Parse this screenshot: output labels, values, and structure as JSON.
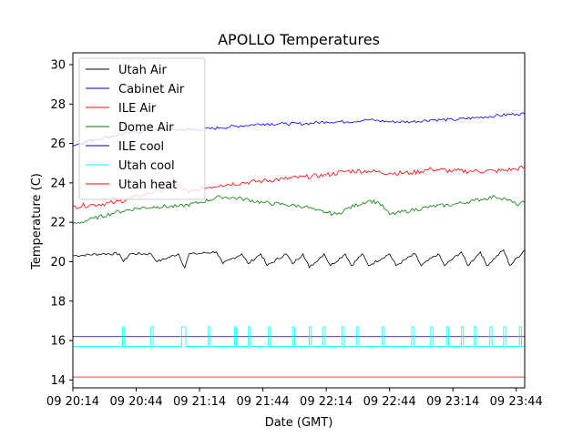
{
  "chart_data": {
    "type": "line",
    "title": "APOLLO Temperatures",
    "xlabel": "Date (GMT)",
    "ylabel": "Temperature (C)",
    "xlim_minutes": [
      0,
      214
    ],
    "ylim": [
      13.6,
      30.6
    ],
    "x_ticks": [
      {
        "label": "09 20:14",
        "minute": 0
      },
      {
        "label": "09 20:44",
        "minute": 30
      },
      {
        "label": "09 21:14",
        "minute": 60
      },
      {
        "label": "09 21:44",
        "minute": 90
      },
      {
        "label": "09 22:14",
        "minute": 120
      },
      {
        "label": "09 22:44",
        "minute": 150
      },
      {
        "label": "09 23:14",
        "minute": 180
      },
      {
        "label": "09 23:44",
        "minute": 210
      }
    ],
    "y_ticks": [
      14,
      16,
      18,
      20,
      22,
      24,
      26,
      28,
      30
    ],
    "legend_position": "upper-left",
    "series": [
      {
        "name": "Utah Air",
        "color": "#000000",
        "x": [
          0,
          14,
          22,
          24,
          27,
          37,
          40,
          50,
          53,
          55,
          58,
          68,
          71,
          80,
          83,
          89,
          92,
          101,
          104,
          109,
          112,
          119,
          122,
          129,
          132,
          137,
          140,
          150,
          153,
          162,
          165,
          173,
          176,
          184,
          187,
          193,
          196,
          204,
          207,
          214
        ],
        "values": [
          20.3,
          20.4,
          20.4,
          20.0,
          20.4,
          20.4,
          20.0,
          20.4,
          19.7,
          20.4,
          20.4,
          20.5,
          19.9,
          20.4,
          19.9,
          20.4,
          19.8,
          20.4,
          19.9,
          20.4,
          19.7,
          20.4,
          19.8,
          20.4,
          19.8,
          20.4,
          19.8,
          20.4,
          19.8,
          20.4,
          19.8,
          20.4,
          19.8,
          20.5,
          19.8,
          20.5,
          19.8,
          20.6,
          19.8,
          20.6
        ]
      },
      {
        "name": "Cabinet Air",
        "color": "#0000ff",
        "x": [
          0,
          10,
          20,
          30,
          40,
          50,
          60,
          70,
          80,
          90,
          100,
          110,
          120,
          130,
          140,
          150,
          160,
          170,
          180,
          190,
          200,
          210,
          214
        ],
        "values": [
          25.9,
          26.2,
          26.4,
          26.6,
          26.7,
          26.7,
          26.7,
          26.8,
          26.9,
          27.0,
          27.0,
          27.0,
          27.1,
          27.1,
          27.2,
          27.1,
          27.1,
          27.2,
          27.2,
          27.3,
          27.4,
          27.5,
          27.5
        ]
      },
      {
        "name": "ILE Air",
        "color": "#ff0000",
        "x": [
          0,
          10,
          20,
          30,
          40,
          50,
          55,
          60,
          70,
          80,
          90,
          100,
          110,
          120,
          130,
          140,
          150,
          160,
          170,
          180,
          190,
          200,
          210,
          214
        ],
        "values": [
          22.8,
          22.9,
          23.0,
          23.3,
          23.6,
          23.9,
          23.5,
          23.7,
          23.9,
          24.0,
          24.1,
          24.2,
          24.3,
          24.4,
          24.6,
          24.6,
          24.5,
          24.5,
          24.7,
          24.6,
          24.6,
          24.6,
          24.7,
          24.8
        ]
      },
      {
        "name": "Dome Air",
        "color": "#008000",
        "x": [
          0,
          10,
          20,
          30,
          40,
          50,
          60,
          70,
          80,
          90,
          100,
          110,
          115,
          120,
          125,
          130,
          140,
          145,
          150,
          160,
          170,
          180,
          190,
          200,
          205,
          210,
          214
        ],
        "values": [
          21.9,
          22.2,
          22.5,
          22.7,
          22.8,
          22.8,
          23.0,
          23.3,
          23.2,
          23.0,
          22.9,
          22.8,
          22.6,
          22.5,
          22.4,
          22.7,
          23.1,
          23.0,
          22.4,
          22.6,
          22.8,
          22.9,
          23.1,
          23.3,
          23.2,
          22.9,
          23.0
        ]
      },
      {
        "name": "ILE cool",
        "color": "#000080",
        "x": [
          0,
          214
        ],
        "values": [
          16.2,
          16.2
        ]
      },
      {
        "name": "Utah cool",
        "color": "#00ffff",
        "x": [
          0,
          23.5,
          23.5,
          24.5,
          24.5,
          37,
          37,
          38,
          38,
          51.5,
          51.5,
          53.5,
          53.5,
          64,
          64,
          65,
          65,
          76.5,
          76.5,
          77.5,
          77.5,
          83,
          83,
          84,
          84,
          92.5,
          92.5,
          93.5,
          93.5,
          104,
          104,
          105,
          105,
          112,
          112,
          113,
          113,
          118.5,
          118.5,
          119.5,
          119.5,
          127.5,
          127.5,
          128.5,
          128.5,
          134.5,
          134.5,
          135.5,
          135.5,
          146.5,
          146.5,
          147.5,
          147.5,
          160.5,
          160.5,
          161.5,
          161.5,
          169.5,
          169.5,
          170.5,
          170.5,
          177,
          177,
          178,
          178,
          184,
          184,
          185,
          185,
          190,
          190,
          191,
          191,
          197.5,
          197.5,
          198.5,
          198.5,
          204,
          204,
          205,
          205,
          211.5,
          211.5,
          212.5,
          212.5,
          214
        ],
        "values": [
          15.7,
          15.7,
          16.7,
          16.7,
          15.7,
          15.7,
          16.7,
          16.7,
          15.7,
          15.7,
          16.7,
          16.7,
          15.7,
          15.7,
          16.7,
          16.7,
          15.7,
          15.7,
          16.7,
          16.7,
          15.7,
          15.7,
          16.7,
          16.7,
          15.7,
          15.7,
          16.7,
          16.7,
          15.7,
          15.7,
          16.7,
          16.7,
          15.7,
          15.7,
          16.7,
          16.7,
          15.7,
          15.7,
          16.7,
          16.7,
          15.7,
          15.7,
          16.7,
          16.7,
          15.7,
          15.7,
          16.7,
          16.7,
          15.7,
          15.7,
          16.7,
          16.7,
          15.7,
          15.7,
          16.7,
          16.7,
          15.7,
          15.7,
          16.7,
          16.7,
          15.7,
          15.7,
          16.7,
          16.7,
          15.7,
          15.7,
          16.7,
          16.7,
          15.7,
          15.7,
          16.7,
          16.7,
          15.7,
          15.7,
          16.7,
          16.7,
          15.7,
          15.7,
          16.7,
          16.7,
          15.7,
          15.7,
          16.7,
          16.7,
          15.7,
          15.7
        ]
      },
      {
        "name": "Utah heat",
        "color": "#ff0000",
        "x": [
          0,
          214
        ],
        "values": [
          14.15,
          14.15
        ]
      }
    ]
  }
}
